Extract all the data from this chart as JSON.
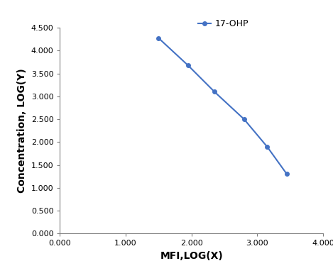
{
  "x": [
    1.5,
    1.95,
    2.35,
    2.8,
    3.15,
    3.45
  ],
  "y": [
    4.275,
    3.675,
    3.1,
    2.5,
    1.9,
    1.3
  ],
  "line_color": "#4472C4",
  "marker": "o",
  "marker_size": 4,
  "line_width": 1.5,
  "legend_label": "17-OHP",
  "xlabel": "MFI,LOG(X)",
  "ylabel": "Concentration, LOG(Y)",
  "xlim": [
    0.0,
    4.0
  ],
  "ylim": [
    0.0,
    4.5
  ],
  "xticks": [
    0.0,
    1.0,
    2.0,
    3.0,
    4.0
  ],
  "yticks": [
    0.0,
    0.5,
    1.0,
    1.5,
    2.0,
    2.5,
    3.0,
    3.5,
    4.0,
    4.5
  ],
  "xtick_labels": [
    "0.000",
    "1.000",
    "2.000",
    "3.000",
    "4.000"
  ],
  "ytick_labels": [
    "0.000",
    "0.500",
    "1.000",
    "1.500",
    "2.000",
    "2.500",
    "3.000",
    "3.500",
    "4.000",
    "4.500"
  ],
  "background_color": "#ffffff",
  "axis_label_fontsize": 10,
  "tick_fontsize": 8,
  "legend_fontsize": 9,
  "spine_color": "#7f7f7f"
}
